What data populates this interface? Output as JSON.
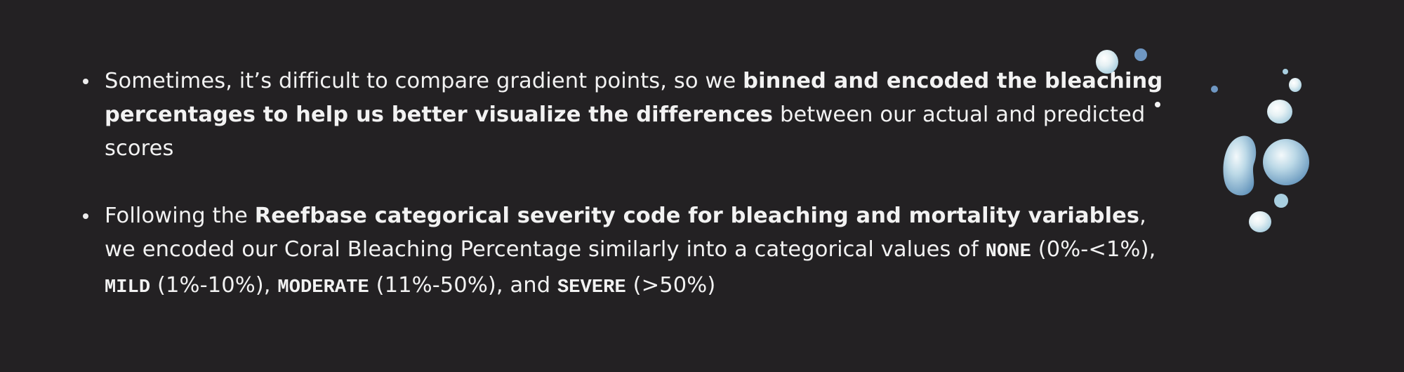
{
  "bullets": [
    {
      "intro": "Sometimes, it’s difficult to compare gradient points, so we ",
      "emphasis": "binned and encoded the bleaching percentages to help us better visualize the differences",
      "outro": " between our actual and predicted scores"
    },
    {
      "intro": "Following the ",
      "emphasis": "Reefbase categorical severity code for bleaching and mortality variables",
      "mid": ", we encoded our Coral Bleaching Percentage similarly into a categorical values of ",
      "categories": [
        {
          "label": "NONE",
          "range": " (0%-<1%), "
        },
        {
          "label": "MILD",
          "range": " (1%-10%), "
        },
        {
          "label": "MODERATE",
          "range": " (11%-50%), and "
        },
        {
          "label": "SEVERE",
          "range": " (>50%)"
        }
      ]
    }
  ],
  "decoration": {
    "name": "watercolor-droplets",
    "colors": {
      "light": "#e6f1f4",
      "mid": "#a9cfe0",
      "deep": "#5d8fb8",
      "dot": "#6f97c2"
    }
  }
}
